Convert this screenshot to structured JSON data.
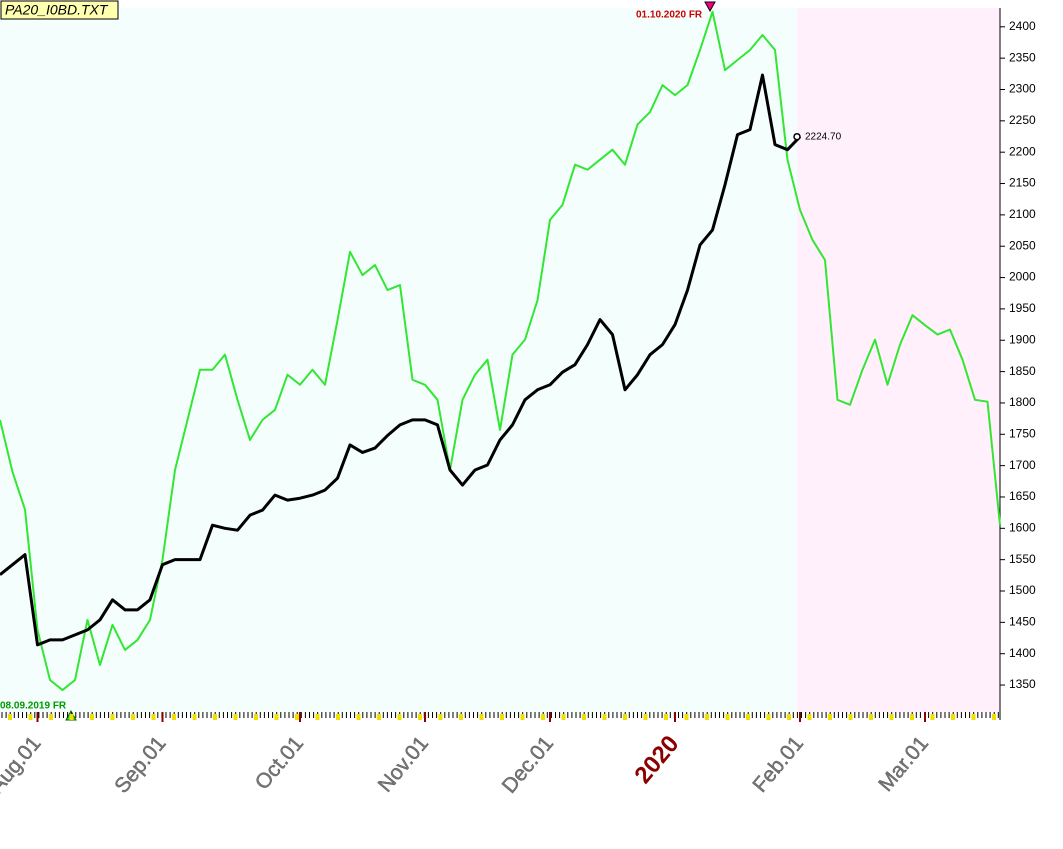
{
  "chart_data": {
    "type": "line",
    "title": "PA20_I0BD.TXT",
    "categories": [
      null,
      null,
      null,
      "Aug.01",
      null,
      null,
      null,
      null,
      null,
      null,
      null,
      null,
      null,
      "Sep.01",
      null,
      null,
      null,
      null,
      null,
      null,
      null,
      null,
      null,
      null,
      "Oct.01",
      null,
      null,
      null,
      null,
      null,
      null,
      null,
      null,
      null,
      "Nov.01",
      null,
      null,
      null,
      null,
      null,
      null,
      null,
      null,
      null,
      "Dec.01",
      null,
      null,
      null,
      null,
      null,
      null,
      null,
      null,
      null,
      "2020",
      null,
      null,
      null,
      null,
      null,
      null,
      null,
      null,
      null,
      "Feb.01",
      null,
      null,
      null,
      null,
      null,
      null,
      null,
      null,
      null,
      "Mar.01",
      null,
      null,
      null,
      null,
      null,
      null
    ],
    "series": [
      {
        "color": "#33e633",
        "values": [
          1773,
          1690,
          1630,
          1438,
          1358,
          1342,
          1358,
          1454,
          1382,
          1446,
          1406,
          1422,
          1454,
          1550,
          1693,
          1773,
          1853,
          1853,
          1877,
          1805,
          1741,
          1773,
          1789,
          1845,
          1829,
          1853,
          1829,
          1932,
          2041,
          2004,
          2020,
          1980,
          1988,
          1837,
          1829,
          1805,
          1693,
          1805,
          1845,
          1869,
          1757,
          1877,
          1901,
          1964,
          2092,
          2116,
          2180,
          2172,
          2188,
          2204,
          2180,
          2244,
          2264,
          2307,
          2291,
          2307,
          2363,
          2424,
          2331,
          2347,
          2363,
          2387,
          2363,
          2188,
          2108,
          2060,
          2028,
          1805,
          1797,
          1853,
          1901,
          1829,
          1893,
          1940,
          1924,
          1909,
          1917,
          1869,
          1805,
          1802,
          1605
        ]
      },
      {
        "color": "#000000",
        "values": [
          1526,
          1542,
          1558,
          1414,
          1422,
          1422,
          1430,
          1438,
          1454,
          1486,
          1470,
          1470,
          1486,
          1542,
          1550,
          1550,
          1550,
          1605,
          1600,
          1597,
          1621,
          1629,
          1653,
          1645,
          1648,
          1653,
          1661,
          1680,
          1733,
          1721,
          1728,
          1748,
          1765,
          1773,
          1773,
          1765,
          1693,
          1669,
          1693,
          1701,
          1741,
          1765,
          1805,
          1821,
          1829,
          1849,
          1861,
          1893,
          1933,
          1909,
          1821,
          1845,
          1877,
          1893,
          1925,
          1980,
          2052,
          2076,
          2148,
          2228,
          2236,
          2323,
          2212,
          2204,
          2224.7,
          null,
          null,
          null,
          null,
          null,
          null,
          null,
          null,
          null,
          null,
          null,
          null,
          null,
          null,
          null,
          null
        ],
        "value_labels": [
          null,
          null,
          null,
          null,
          null,
          null,
          null,
          null,
          null,
          null,
          null,
          null,
          null,
          null,
          null,
          null,
          null,
          null,
          null,
          null,
          null,
          null,
          null,
          null,
          null,
          null,
          null,
          null,
          null,
          null,
          null,
          null,
          null,
          null,
          null,
          null,
          null,
          null,
          null,
          null,
          null,
          null,
          null,
          null,
          null,
          null,
          null,
          null,
          null,
          null,
          null,
          null,
          null,
          null,
          null,
          null,
          null,
          null,
          null,
          null,
          null,
          null,
          null,
          null,
          "2224.70",
          null,
          null,
          null,
          null,
          null,
          null,
          null,
          null,
          null,
          null,
          null,
          null,
          null,
          null,
          null,
          null
        ]
      }
    ],
    "ylim": [
      1307,
      2430
    ],
    "yticks": [
      1350,
      1400,
      1450,
      1500,
      1550,
      1600,
      1650,
      1700,
      1750,
      1800,
      1850,
      1900,
      1950,
      2000,
      2050,
      2100,
      2150,
      2200,
      2250,
      2300,
      2350,
      2400
    ],
    "annotations": [
      "01.10.2020 FR",
      "08.09.2019 FR"
    ]
  }
}
